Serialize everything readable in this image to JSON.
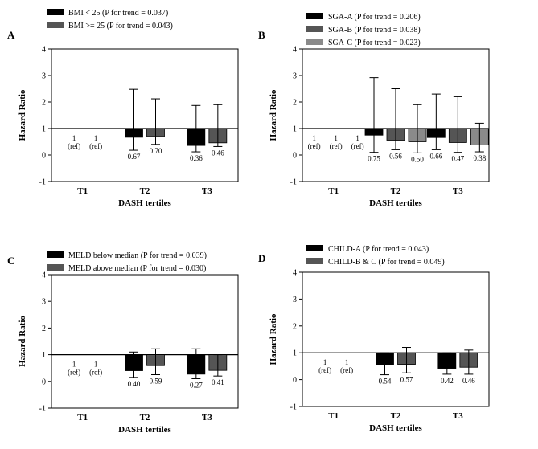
{
  "figure": {
    "x_label": "DASH tertiles",
    "y_label": "Hazard Ratio"
  },
  "colors": {
    "black": "#000000",
    "dark_gray": "#555555",
    "light_gray": "#8a8a8a",
    "reference_line": "#000000",
    "background": "#ffffff"
  },
  "chart_data": [
    {
      "panel": "A",
      "type": "bar",
      "ylabel": "Hazard Ratio",
      "xlabel": "DASH tertiles",
      "ylim": [
        -1,
        4
      ],
      "yticks": [
        -1,
        0,
        1,
        2,
        3,
        4
      ],
      "reference_value": 1,
      "categories": [
        "T1",
        "T2",
        "T3"
      ],
      "series": [
        {
          "name": "BMI < 25 (P for trend = 0.037)",
          "color": "#000000",
          "values": [
            1,
            0.67,
            0.36
          ],
          "ci_low": [
            null,
            0.18,
            0.12
          ],
          "ci_high": [
            null,
            2.48,
            1.87
          ],
          "labels": [
            "1\n(ref)",
            "0.67",
            "0.36"
          ]
        },
        {
          "name": "BMI >= 25 (P for trend = 0.043)",
          "color": "#555555",
          "values": [
            1,
            0.7,
            0.46
          ],
          "ci_low": [
            null,
            0.4,
            0.32
          ],
          "ci_high": [
            null,
            2.12,
            1.9
          ],
          "labels": [
            "1\n(ref)",
            "0.70",
            "0.46"
          ]
        }
      ]
    },
    {
      "panel": "B",
      "type": "bar",
      "ylabel": "Hazard Ratio",
      "xlabel": "DASH tertiles",
      "ylim": [
        -1,
        4
      ],
      "yticks": [
        -1,
        0,
        1,
        2,
        3,
        4
      ],
      "reference_value": 1,
      "categories": [
        "T1",
        "T2",
        "T3"
      ],
      "series": [
        {
          "name": "SGA-A (P for trend = 0.206)",
          "color": "#000000",
          "values": [
            1,
            0.75,
            0.66
          ],
          "ci_low": [
            null,
            0.1,
            0.2
          ],
          "ci_high": [
            null,
            2.92,
            2.3
          ],
          "labels": [
            "1\n(ref)",
            "0.75",
            "0.66"
          ]
        },
        {
          "name": "SGA-B (P for trend = 0.038)",
          "color": "#555555",
          "values": [
            1,
            0.56,
            0.47
          ],
          "ci_low": [
            null,
            0.2,
            0.1
          ],
          "ci_high": [
            null,
            2.5,
            2.2
          ],
          "labels": [
            "1\n(ref)",
            "0.56",
            "0.47"
          ]
        },
        {
          "name": "SGA-C (P for trend = 0.023)",
          "color": "#8a8a8a",
          "values": [
            1,
            0.5,
            0.38
          ],
          "ci_low": [
            null,
            0.08,
            0.12
          ],
          "ci_high": [
            null,
            1.9,
            1.2
          ],
          "labels": [
            "1\n(ref)",
            "0.50",
            "0.38"
          ]
        }
      ]
    },
    {
      "panel": "C",
      "type": "bar",
      "ylabel": "Hazard Ratio",
      "xlabel": "DASH tertiles",
      "ylim": [
        -1,
        4
      ],
      "yticks": [
        -1,
        0,
        1,
        2,
        3,
        4
      ],
      "reference_value": 1,
      "categories": [
        "T1",
        "T2",
        "T3"
      ],
      "series": [
        {
          "name": "MELD below median (P for trend = 0.039)",
          "color": "#000000",
          "values": [
            1,
            0.4,
            0.27
          ],
          "ci_low": [
            null,
            0.15,
            0.1
          ],
          "ci_high": [
            null,
            1.1,
            1.22
          ],
          "labels": [
            "1\n(ref)",
            "0.40",
            "0.27"
          ]
        },
        {
          "name": "MELD above median (P for trend = 0.030)",
          "color": "#555555",
          "values": [
            1,
            0.59,
            0.41
          ],
          "ci_low": [
            null,
            0.25,
            0.2
          ],
          "ci_high": [
            null,
            1.22,
            1.0
          ],
          "labels": [
            "1\n(ref)",
            "0.59",
            "0.41"
          ]
        }
      ]
    },
    {
      "panel": "D",
      "type": "bar",
      "ylabel": "Hazard Ratio",
      "xlabel": "DASH tertiles",
      "ylim": [
        -1,
        4
      ],
      "yticks": [
        -1,
        0,
        1,
        2,
        3,
        4
      ],
      "reference_value": 1,
      "categories": [
        "T1",
        "T2",
        "T3"
      ],
      "series": [
        {
          "name": "CHILD-A (P for trend = 0.043)",
          "color": "#000000",
          "values": [
            1,
            0.54,
            0.42
          ],
          "ci_low": [
            null,
            0.18,
            0.2
          ],
          "ci_high": [
            null,
            1.0,
            1.0
          ],
          "labels": [
            "1\n(ref)",
            "0.54",
            "0.42"
          ]
        },
        {
          "name": "CHILD-B & C (P for trend = 0.049)",
          "color": "#555555",
          "values": [
            1,
            0.57,
            0.46
          ],
          "ci_low": [
            null,
            0.25,
            0.2
          ],
          "ci_high": [
            null,
            1.2,
            1.1
          ],
          "labels": [
            "1\n(ref)",
            "0.57",
            "0.46"
          ]
        }
      ]
    }
  ]
}
